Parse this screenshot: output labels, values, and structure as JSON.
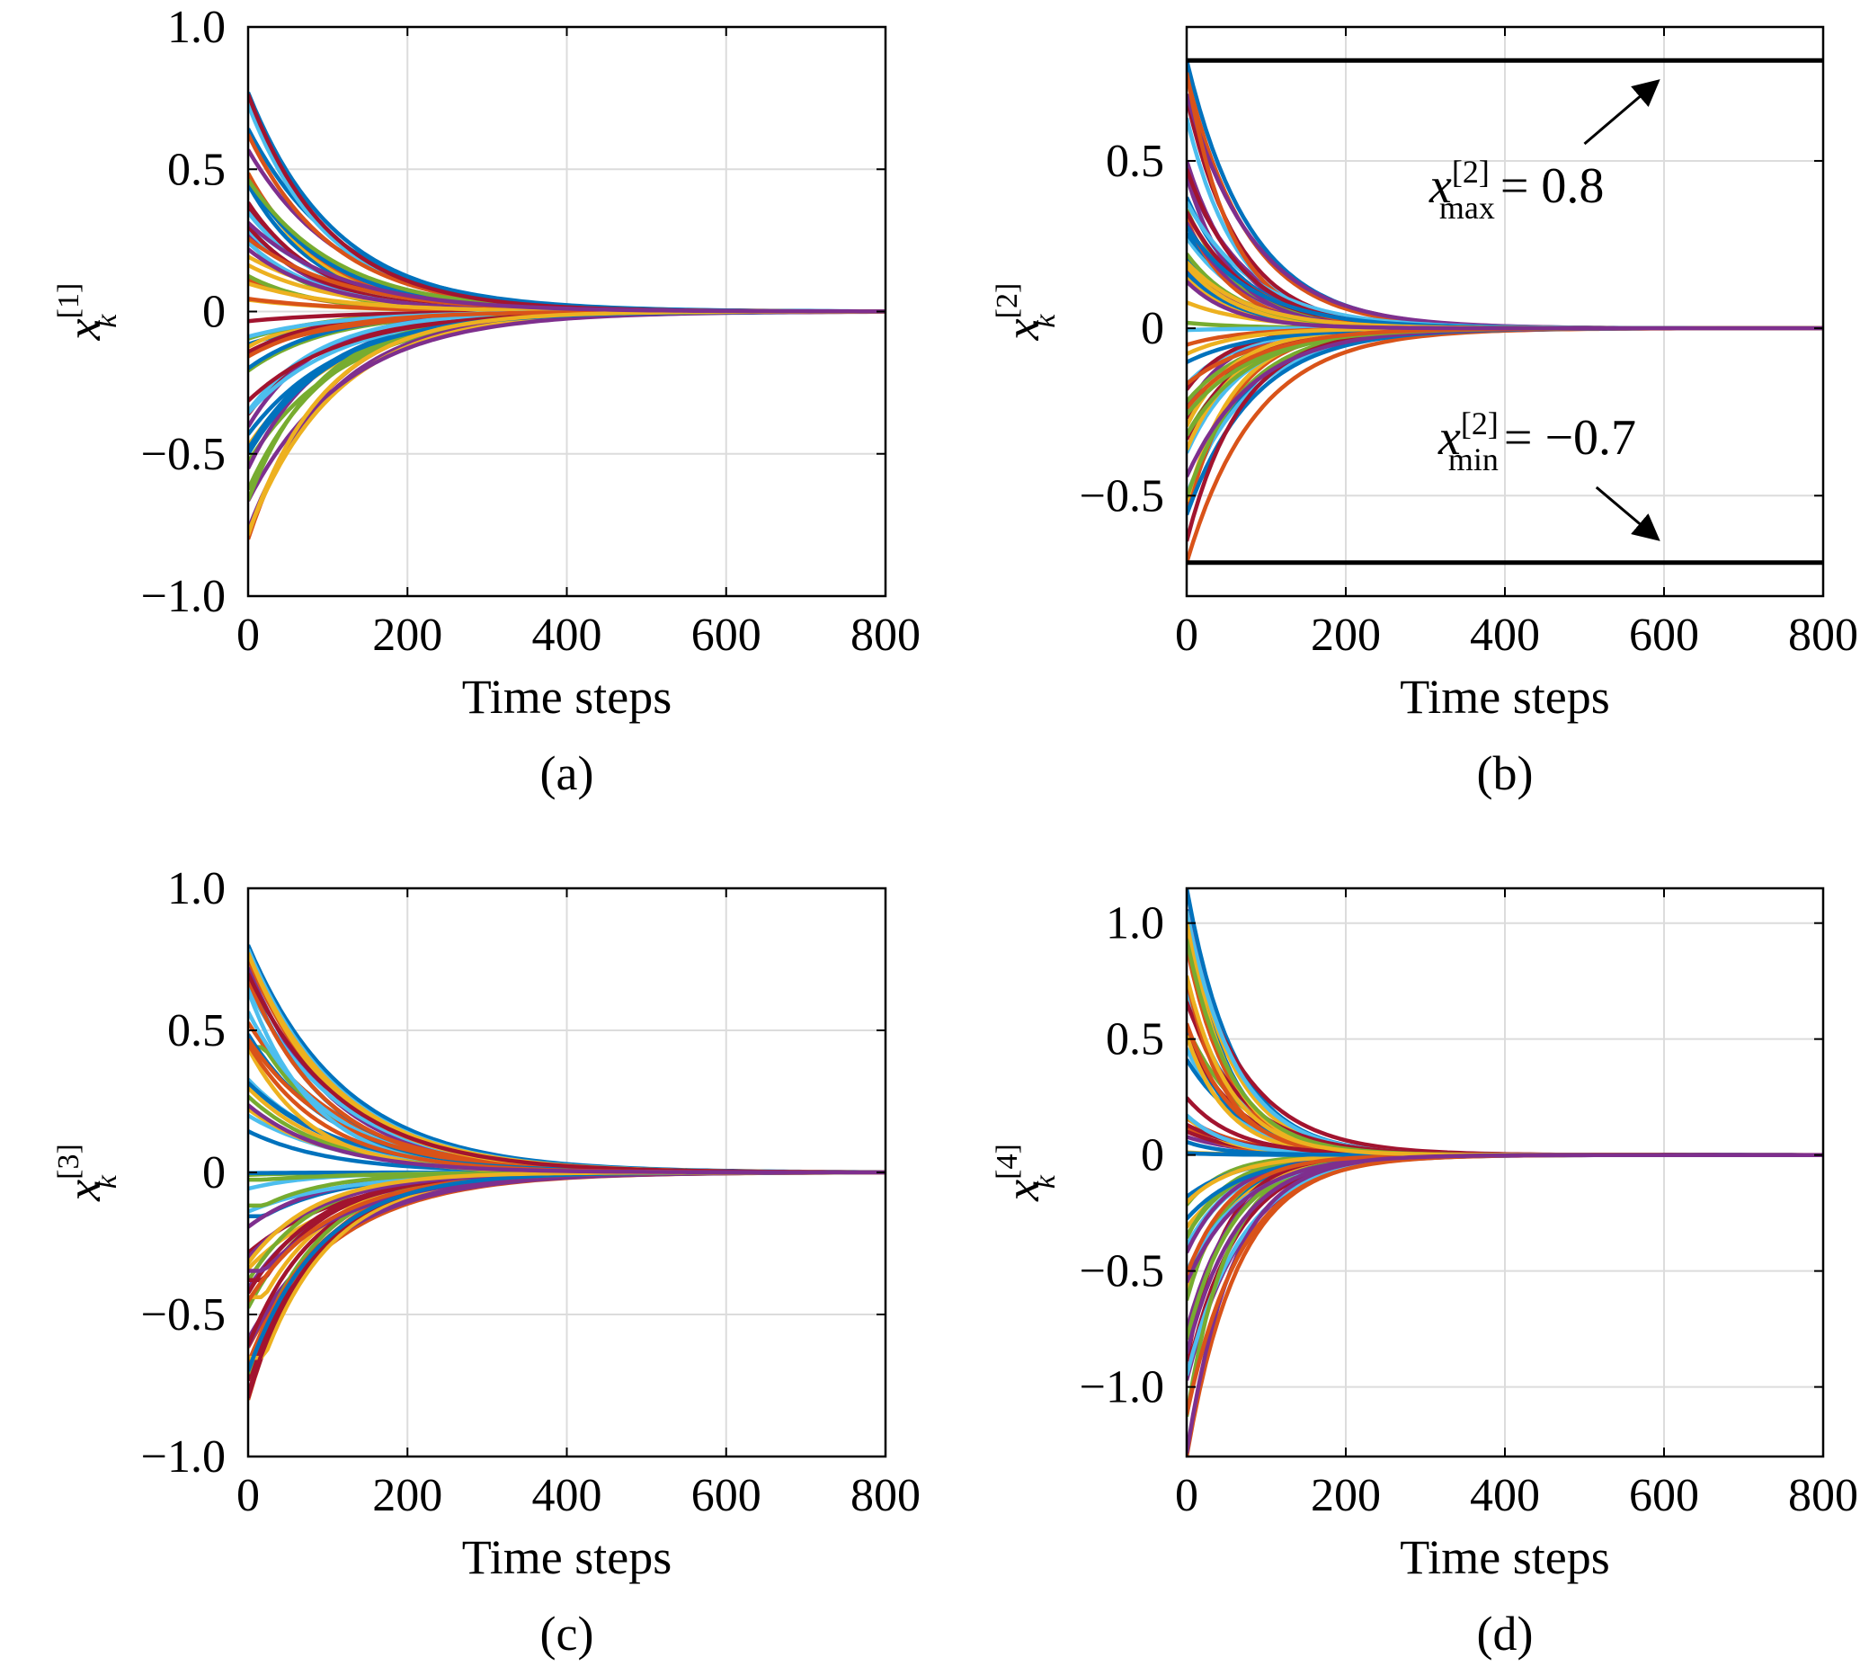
{
  "chart_data": [
    {
      "type": "line",
      "caption": "(a)",
      "xlabel": "Time steps",
      "ylabel": {
        "var": "x",
        "sub": "k",
        "sup": "[1]"
      },
      "xlim": [
        0,
        800
      ],
      "ylim": [
        -1.0,
        1.0
      ],
      "xticks": [
        0,
        200,
        400,
        600,
        800
      ],
      "xtick_labels": [
        "0",
        "200",
        "400",
        "600",
        "800"
      ],
      "yticks": [
        -1.0,
        -0.5,
        0,
        0.5,
        1.0
      ],
      "ytick_labels": [
        "−1.0",
        "−0.5",
        "0",
        "0.5",
        "1.0"
      ],
      "grid": true,
      "series_description": "many trajectories decaying from initial values to 0",
      "initial_range": [
        -0.8,
        0.77
      ],
      "decay_time_constant": 100,
      "num_trajectories": 60,
      "converged_by": 600,
      "bounds": []
    },
    {
      "type": "line",
      "caption": "(b)",
      "xlabel": "Time steps",
      "ylabel": {
        "var": "x",
        "sub": "k",
        "sup": "[2]"
      },
      "xlim": [
        0,
        800
      ],
      "ylim": [
        -0.8,
        0.9
      ],
      "xticks": [
        0,
        200,
        400,
        600,
        800
      ],
      "xtick_labels": [
        "0",
        "200",
        "400",
        "600",
        "800"
      ],
      "yticks": [
        -0.5,
        0,
        0.5
      ],
      "ytick_labels": [
        "−0.5",
        "0",
        "0.5"
      ],
      "grid": true,
      "initial_range": [
        -0.7,
        0.8
      ],
      "decay_time_constant": 70,
      "num_trajectories": 60,
      "converged_by": 500,
      "bounds": [
        {
          "name": "x_max",
          "value": 0.8,
          "label_var": "x",
          "label_sup": "[2]",
          "label_sub": "max",
          "label_rhs": "= 0.8"
        },
        {
          "name": "x_min",
          "value": -0.7,
          "label_var": "x",
          "label_sup": "[2]",
          "label_sub": "min",
          "label_rhs": "= −0.7"
        }
      ]
    },
    {
      "type": "line",
      "caption": "(c)",
      "xlabel": "Time steps",
      "ylabel": {
        "var": "x",
        "sub": "k",
        "sup": "[3]"
      },
      "xlim": [
        0,
        800
      ],
      "ylim": [
        -1.0,
        1.0
      ],
      "xticks": [
        0,
        200,
        400,
        600,
        800
      ],
      "xtick_labels": [
        "0",
        "200",
        "400",
        "600",
        "800"
      ],
      "yticks": [
        -1.0,
        -0.5,
        0,
        0.5,
        1.0
      ],
      "ytick_labels": [
        "−1.0",
        "−0.5",
        "0",
        "0.5",
        "1.0"
      ],
      "grid": true,
      "initial_range": [
        -0.8,
        0.8
      ],
      "decay_time_constant": 100,
      "num_trajectories": 60,
      "converged_by": 600,
      "bounds": []
    },
    {
      "type": "line",
      "caption": "(d)",
      "xlabel": "Time steps",
      "ylabel": {
        "var": "x",
        "sub": "k",
        "sup": "[4]"
      },
      "xlim": [
        0,
        800
      ],
      "ylim": [
        -1.3,
        1.15
      ],
      "xticks": [
        0,
        200,
        400,
        600,
        800
      ],
      "xtick_labels": [
        "0",
        "200",
        "400",
        "600",
        "800"
      ],
      "yticks": [
        -1.0,
        -0.5,
        0,
        0.5,
        1.0
      ],
      "ytick_labels": [
        "−1.0",
        "−0.5",
        "0",
        "0.5",
        "1.0"
      ],
      "grid": true,
      "initial_range": [
        -1.3,
        1.15
      ],
      "decay_time_constant": 60,
      "num_trajectories": 60,
      "converged_by": 450,
      "bounds": []
    }
  ],
  "colors": {
    "palette": [
      "#0072BD",
      "#D95319",
      "#EDB120",
      "#7E2F8E",
      "#77AC30",
      "#4DBEEE",
      "#A2142F"
    ],
    "axis": "#000000",
    "grid": "#dcdcdc",
    "bound_line": "#000000"
  }
}
